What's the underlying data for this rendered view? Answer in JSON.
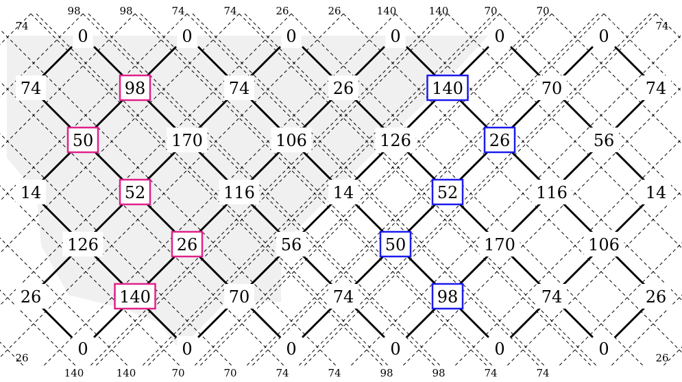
{
  "rows": [
    [
      "0",
      "0",
      "0",
      "0",
      "0",
      "0"
    ],
    [
      "74",
      "98",
      "74",
      "26",
      "140",
      "70",
      "74"
    ],
    [
      "50",
      "170",
      "106",
      "126",
      "26",
      "56"
    ],
    [
      "14",
      "52",
      "116",
      "14",
      "52",
      "116",
      "14"
    ],
    [
      "126",
      "26",
      "56",
      "50",
      "170",
      "106"
    ],
    [
      "26",
      "140",
      "70",
      "74",
      "98",
      "74",
      "26"
    ],
    [
      "0",
      "0",
      "0",
      "0",
      "0",
      "0"
    ]
  ],
  "top_labels": [
    "74",
    "98",
    "98",
    "74",
    "74",
    "26",
    "26",
    "140",
    "140",
    "70",
    "70",
    "74"
  ],
  "bottom_labels": [
    "26",
    "140",
    "140",
    "70",
    "70",
    "74",
    "74",
    "98",
    "98",
    "74",
    "74",
    "26"
  ],
  "boxed": {
    "magenta": [
      [
        1,
        1
      ],
      [
        2,
        0
      ],
      [
        3,
        1
      ],
      [
        4,
        1
      ],
      [
        5,
        1
      ]
    ],
    "blue": [
      [
        1,
        4
      ],
      [
        2,
        4
      ],
      [
        3,
        4
      ],
      [
        4,
        3
      ],
      [
        5,
        4
      ]
    ]
  },
  "colors": {
    "magenta": "#e0208a",
    "blue": "#1a1aee",
    "shade": "#f0f0f0"
  }
}
